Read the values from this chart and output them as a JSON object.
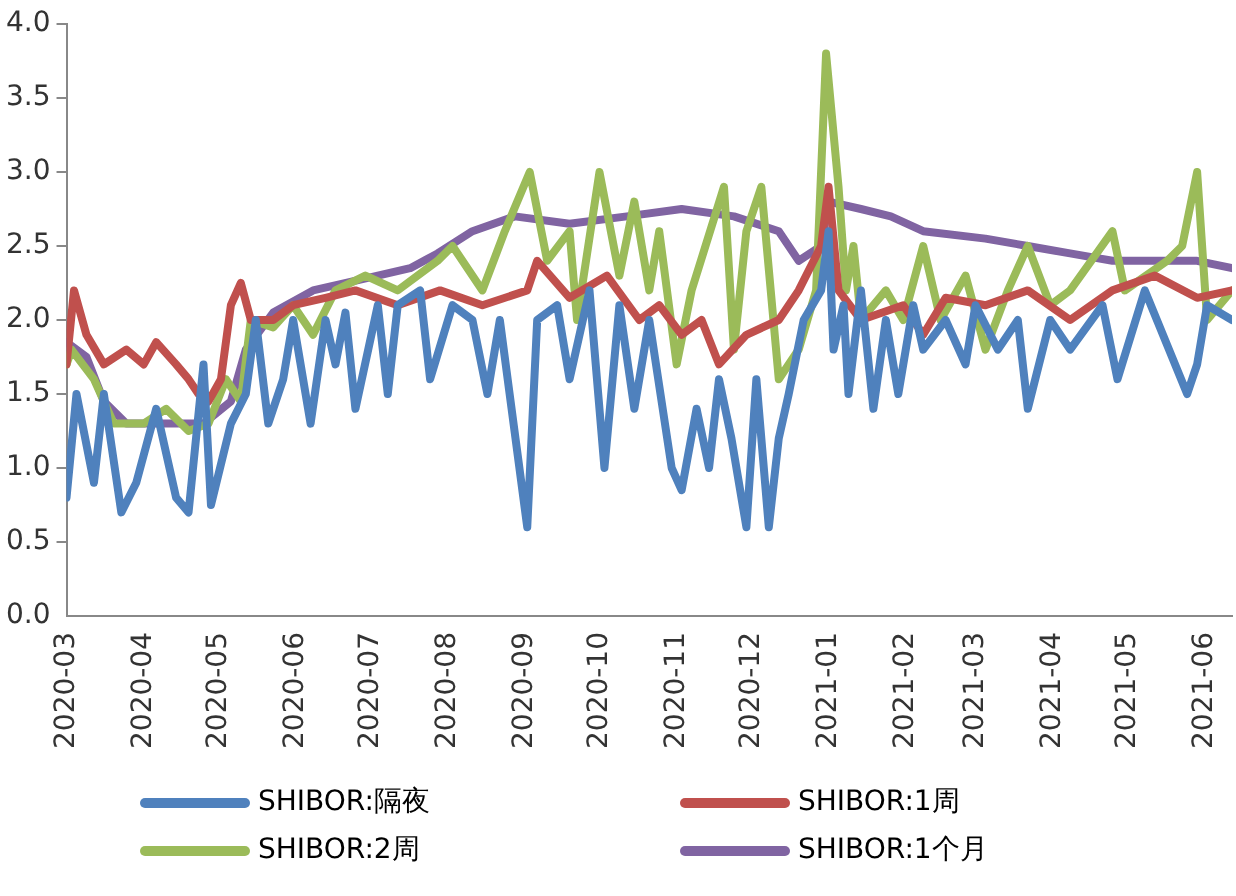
{
  "chart_data": {
    "type": "line",
    "legend": "bottom",
    "grid": false,
    "marker": "none",
    "line_style": "solid",
    "xlim": [
      "2020-03-01",
      "2021-06-12"
    ],
    "xticks": [
      {
        "value": "2020-03-01",
        "label": "2020-03"
      },
      {
        "value": "2020-04-01",
        "label": "2020-04"
      },
      {
        "value": "2020-05-01",
        "label": "2020-05"
      },
      {
        "value": "2020-06-01",
        "label": "2020-06"
      },
      {
        "value": "2020-07-01",
        "label": "2020-07"
      },
      {
        "value": "2020-08-01",
        "label": "2020-08"
      },
      {
        "value": "2020-09-01",
        "label": "2020-09"
      },
      {
        "value": "2020-10-01",
        "label": "2020-10"
      },
      {
        "value": "2020-11-01",
        "label": "2020-11"
      },
      {
        "value": "2020-12-01",
        "label": "2020-12"
      },
      {
        "value": "2021-01-01",
        "label": "2021-01"
      },
      {
        "value": "2021-02-01",
        "label": "2021-02"
      },
      {
        "value": "2021-03-01",
        "label": "2021-03"
      },
      {
        "value": "2021-04-01",
        "label": "2021-04"
      },
      {
        "value": "2021-05-01",
        "label": "2021-05"
      },
      {
        "value": "2021-06-01",
        "label": "2021-06"
      }
    ],
    "ylim": [
      0,
      4
    ],
    "yticks": [
      {
        "value": 0,
        "label": "0.0"
      },
      {
        "value": 0.5,
        "label": "0.5"
      },
      {
        "value": 1,
        "label": "1.0"
      },
      {
        "value": 1.5,
        "label": "1.5"
      },
      {
        "value": 2,
        "label": "2.0"
      },
      {
        "value": 2.5,
        "label": "2.5"
      },
      {
        "value": 3,
        "label": "3.0"
      },
      {
        "value": 3.5,
        "label": "3.5"
      },
      {
        "value": 4,
        "label": "4.0"
      }
    ],
    "series": [
      {
        "name": "SHIBOR:隔夜",
        "color": "#4f81bd",
        "x": [
          "2020-03-01",
          "2020-03-05",
          "2020-03-12",
          "2020-03-16",
          "2020-03-23",
          "2020-03-29",
          "2020-04-06",
          "2020-04-14",
          "2020-04-19",
          "2020-04-25",
          "2020-04-28",
          "2020-05-06",
          "2020-05-12",
          "2020-05-16",
          "2020-05-21",
          "2020-05-27",
          "2020-05-31",
          "2020-06-07",
          "2020-06-13",
          "2020-06-17",
          "2020-06-21",
          "2020-06-25",
          "2020-07-04",
          "2020-07-08",
          "2020-07-12",
          "2020-07-21",
          "2020-07-25",
          "2020-08-03",
          "2020-08-11",
          "2020-08-17",
          "2020-08-22",
          "2020-09-02",
          "2020-09-06",
          "2020-09-14",
          "2020-09-19",
          "2020-09-27",
          "2020-10-03",
          "2020-10-09",
          "2020-10-15",
          "2020-10-21",
          "2020-10-30",
          "2020-11-03",
          "2020-11-09",
          "2020-11-14",
          "2020-11-18",
          "2020-11-23",
          "2020-11-29",
          "2020-12-03",
          "2020-12-08",
          "2020-12-12",
          "2020-12-16",
          "2020-12-22",
          "2020-12-29",
          "2021-01-01",
          "2021-01-03",
          "2021-01-07",
          "2021-01-09",
          "2021-01-14",
          "2021-01-19",
          "2021-01-24",
          "2021-01-29",
          "2021-02-04",
          "2021-02-08",
          "2021-02-17",
          "2021-02-25",
          "2021-03-01",
          "2021-03-10",
          "2021-03-18",
          "2021-03-22",
          "2021-03-31",
          "2021-04-08",
          "2021-04-21",
          "2021-04-27",
          "2021-05-08",
          "2021-05-25",
          "2021-05-29",
          "2021-06-02",
          "2021-06-12"
        ],
        "values": [
          0.8,
          1.5,
          0.9,
          1.5,
          0.7,
          0.9,
          1.4,
          0.8,
          0.7,
          1.7,
          0.75,
          1.3,
          1.5,
          2.0,
          1.3,
          1.6,
          2.0,
          1.3,
          2.0,
          1.7,
          2.05,
          1.4,
          2.1,
          1.5,
          2.1,
          2.2,
          1.6,
          2.1,
          2.0,
          1.5,
          2.0,
          0.6,
          2.0,
          2.1,
          1.6,
          2.2,
          1.0,
          2.1,
          1.4,
          2.0,
          1.0,
          0.85,
          1.4,
          1.0,
          1.6,
          1.2,
          0.6,
          1.6,
          0.6,
          1.2,
          1.5,
          2.0,
          2.2,
          2.6,
          1.8,
          2.1,
          1.5,
          2.2,
          1.4,
          2.0,
          1.5,
          2.1,
          1.8,
          2.0,
          1.7,
          2.1,
          1.8,
          2.0,
          1.4,
          2.0,
          1.8,
          2.1,
          1.6,
          2.2,
          1.5,
          1.7,
          2.1,
          2.0
        ]
      },
      {
        "name": "SHIBOR:1周",
        "color": "#c0504d",
        "x": [
          "2020-03-01",
          "2020-03-04",
          "2020-03-09",
          "2020-03-16",
          "2020-03-25",
          "2020-04-01",
          "2020-04-06",
          "2020-04-14",
          "2020-04-19",
          "2020-04-23",
          "2020-04-27",
          "2020-05-02",
          "2020-05-06",
          "2020-05-10",
          "2020-05-14",
          "2020-05-23",
          "2020-05-31",
          "2020-06-13",
          "2020-06-25",
          "2020-07-12",
          "2020-07-29",
          "2020-08-15",
          "2020-09-02",
          "2020-09-06",
          "2020-09-19",
          "2020-10-04",
          "2020-10-17",
          "2020-10-25",
          "2020-11-03",
          "2020-11-11",
          "2020-11-18",
          "2020-11-29",
          "2020-12-12",
          "2020-12-20",
          "2020-12-29",
          "2021-01-01",
          "2021-01-05",
          "2021-01-14",
          "2021-01-31",
          "2021-02-08",
          "2021-02-17",
          "2021-03-05",
          "2021-03-22",
          "2021-04-08",
          "2021-04-25",
          "2021-05-12",
          "2021-05-29",
          "2021-06-12"
        ],
        "values": [
          1.7,
          2.2,
          1.9,
          1.7,
          1.8,
          1.7,
          1.85,
          1.7,
          1.6,
          1.5,
          1.45,
          1.6,
          2.1,
          2.25,
          2.0,
          2.0,
          2.1,
          2.15,
          2.2,
          2.1,
          2.2,
          2.1,
          2.2,
          2.4,
          2.15,
          2.3,
          2.0,
          2.1,
          1.9,
          2.0,
          1.7,
          1.9,
          2.0,
          2.2,
          2.5,
          2.9,
          2.2,
          2.0,
          2.1,
          1.9,
          2.15,
          2.1,
          2.2,
          2.0,
          2.2,
          2.3,
          2.15,
          2.2
        ]
      },
      {
        "name": "SHIBOR:2周",
        "color": "#9bbb59",
        "x": [
          "2020-03-01",
          "2020-03-03",
          "2020-03-12",
          "2020-03-20",
          "2020-04-01",
          "2020-04-10",
          "2020-04-19",
          "2020-04-27",
          "2020-05-04",
          "2020-05-10",
          "2020-05-14",
          "2020-05-23",
          "2020-05-31",
          "2020-06-08",
          "2020-06-17",
          "2020-06-29",
          "2020-07-12",
          "2020-07-28",
          "2020-08-03",
          "2020-08-15",
          "2020-08-24",
          "2020-09-03",
          "2020-09-10",
          "2020-09-19",
          "2020-09-22",
          "2020-10-01",
          "2020-10-09",
          "2020-10-15",
          "2020-10-21",
          "2020-10-25",
          "2020-11-01",
          "2020-11-07",
          "2020-11-20",
          "2020-11-24",
          "2020-11-29",
          "2020-12-05",
          "2020-12-12",
          "2020-12-20",
          "2020-12-27",
          "2020-12-31",
          "2021-01-05",
          "2021-01-08",
          "2021-01-11",
          "2021-01-14",
          "2021-01-24",
          "2021-01-31",
          "2021-02-08",
          "2021-02-15",
          "2021-02-25",
          "2021-03-05",
          "2021-03-14",
          "2021-03-22",
          "2021-03-31",
          "2021-04-08",
          "2021-04-25",
          "2021-04-30",
          "2021-05-17",
          "2021-05-23",
          "2021-05-29",
          "2021-06-02",
          "2021-06-12"
        ],
        "values": [
          1.7,
          1.8,
          1.6,
          1.3,
          1.3,
          1.4,
          1.25,
          1.3,
          1.6,
          1.45,
          2.0,
          1.95,
          2.1,
          1.9,
          2.2,
          2.3,
          2.2,
          2.4,
          2.5,
          2.2,
          2.6,
          3.0,
          2.4,
          2.6,
          2.0,
          3.0,
          2.3,
          2.8,
          2.2,
          2.6,
          1.7,
          2.2,
          2.9,
          1.8,
          2.6,
          2.9,
          1.6,
          1.8,
          2.2,
          3.8,
          2.9,
          2.2,
          2.5,
          2.0,
          2.2,
          2.0,
          2.5,
          2.0,
          2.3,
          1.8,
          2.2,
          2.5,
          2.1,
          2.2,
          2.6,
          2.2,
          2.4,
          2.5,
          3.0,
          2.0,
          2.2
        ]
      },
      {
        "name": "SHIBOR:1个月",
        "color": "#8064a2",
        "x": [
          "2020-03-01",
          "2020-03-09",
          "2020-03-16",
          "2020-03-25",
          "2020-04-10",
          "2020-04-25",
          "2020-05-06",
          "2020-05-12",
          "2020-05-23",
          "2020-06-08",
          "2020-07-04",
          "2020-07-17",
          "2020-07-28",
          "2020-08-11",
          "2020-08-28",
          "2020-09-19",
          "2020-10-12",
          "2020-11-03",
          "2020-11-24",
          "2020-12-12",
          "2020-12-20",
          "2020-12-29",
          "2021-01-01",
          "2021-01-14",
          "2021-01-26",
          "2021-02-08",
          "2021-03-05",
          "2021-03-22",
          "2021-04-08",
          "2021-04-25",
          "2021-05-12",
          "2021-05-29",
          "2021-06-12"
        ],
        "values": [
          1.85,
          1.75,
          1.45,
          1.3,
          1.3,
          1.3,
          1.45,
          1.8,
          2.05,
          2.2,
          2.3,
          2.35,
          2.45,
          2.6,
          2.7,
          2.65,
          2.7,
          2.75,
          2.7,
          2.6,
          2.4,
          2.5,
          2.8,
          2.75,
          2.7,
          2.6,
          2.55,
          2.5,
          2.45,
          2.4,
          2.4,
          2.4,
          2.35
        ]
      }
    ]
  }
}
